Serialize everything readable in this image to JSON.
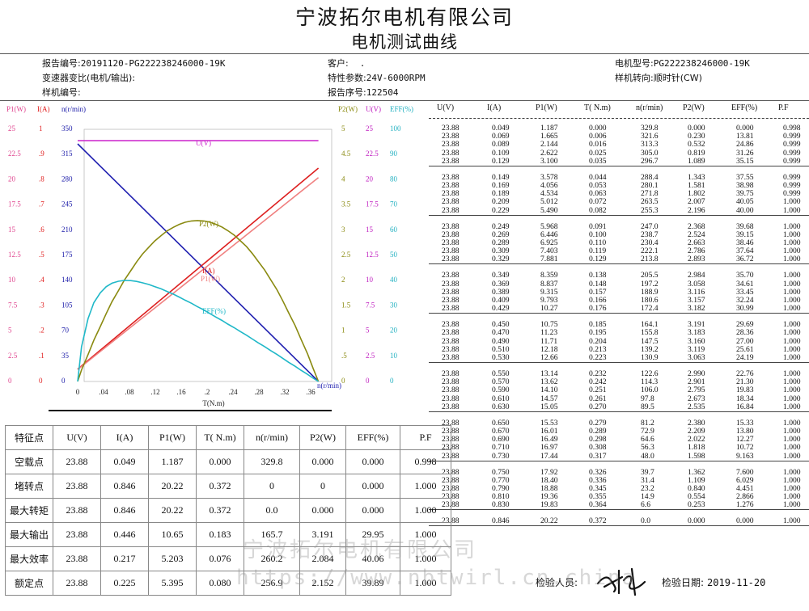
{
  "header": {
    "company": "宁波拓尔电机有限公司",
    "doc_title": "电机测试曲线",
    "report_no_label": "报告编号:",
    "report_no": "20191120-PG222238246000-19K",
    "customer_label": "客户:",
    "customer": ".",
    "motor_model_label": "电机型号:",
    "motor_model": "PG222238246000-19K",
    "gear_ratio_label": "变速器变比(电机/输出):",
    "gear_ratio": "",
    "spec_label": "特性参数:",
    "spec": "24V-6000RPM",
    "rotation_label": "样机转向:",
    "rotation": "顺时针(CW)",
    "sample_no_label": "样机编号:",
    "sample_no": "",
    "report_seq_label": "报告序号:",
    "report_seq": "122504"
  },
  "chart_data": {
    "type": "line",
    "xlabel": "T(N.m)",
    "x_ticks": [
      "0",
      ".04",
      ".08",
      ".12",
      ".16",
      ".2",
      ".24",
      ".28",
      ".32",
      ".36"
    ],
    "xlim": [
      0,
      0.4
    ],
    "left_axes": [
      {
        "name": "P1(W)",
        "color": "#e0458f",
        "ticks": [
          "25",
          "22.5",
          "20",
          "17.5",
          "15",
          "12.5",
          "10",
          "7.5",
          "5",
          "2.5",
          "0"
        ]
      },
      {
        "name": "I(A)",
        "color": "#e02020",
        "ticks": [
          "1",
          ".9",
          ".8",
          ".7",
          ".6",
          ".5",
          ".4",
          ".3",
          ".2",
          ".1",
          "0"
        ]
      },
      {
        "name": "n(r/min)",
        "color": "#1a1aa8",
        "ticks": [
          "350",
          "315",
          "280",
          "245",
          "210",
          "175",
          "140",
          "105",
          "70",
          "35",
          "0"
        ]
      }
    ],
    "right_axes": [
      {
        "name": "P2(W)",
        "color": "#8a8a10",
        "ticks": [
          "5",
          "4.5",
          "4",
          "3.5",
          "3",
          "2.5",
          "2",
          "1.5",
          "1",
          ".5",
          "0"
        ]
      },
      {
        "name": "U(V)",
        "color": "#c020c0",
        "ticks": [
          "25",
          "22.5",
          "20",
          "17.5",
          "15",
          "12.5",
          "10",
          "7.5",
          "5",
          "2.5",
          "0"
        ]
      },
      {
        "name": "EFF(%)",
        "color": "#20b0c0",
        "ticks": [
          "100",
          "90",
          "80",
          "70",
          "60",
          "50",
          "40",
          "30",
          "20",
          "10",
          "0"
        ]
      }
    ],
    "curve_labels": {
      "U": "U(V)",
      "P2": "P2(W)",
      "I": "I(A)",
      "P1": "P1(W)",
      "EFF": "EFF(%)",
      "n": "n(r/min)"
    },
    "series": [
      {
        "name": "U(V)",
        "axis": "U(V)",
        "color": "#cc22cc",
        "x": [
          0.0,
          0.372
        ],
        "y": [
          23.88,
          23.88
        ]
      },
      {
        "name": "n(r/min)",
        "axis": "n(r/min)",
        "color": "#2020b0",
        "x": [
          0.0,
          0.372
        ],
        "y": [
          329.8,
          0.0
        ]
      },
      {
        "name": "I(A)",
        "axis": "I(A)",
        "color": "#dd2020",
        "x": [
          0.0,
          0.372
        ],
        "y": [
          0.049,
          0.846
        ]
      },
      {
        "name": "P1(W)",
        "axis": "P1(W)",
        "color": "#f08080",
        "x": [
          0.0,
          0.372
        ],
        "y": [
          1.187,
          20.22
        ]
      },
      {
        "name": "P2(W)",
        "axis": "P2(W)",
        "color": "#8a8a10",
        "x": [
          0.0,
          0.006,
          0.016,
          0.025,
          0.035,
          0.044,
          0.053,
          0.063,
          0.072,
          0.082,
          0.091,
          0.1,
          0.11,
          0.119,
          0.129,
          0.138,
          0.148,
          0.157,
          0.166,
          0.176,
          0.185,
          0.195,
          0.204,
          0.213,
          0.223,
          0.232,
          0.242,
          0.251,
          0.261,
          0.27,
          0.279,
          0.289,
          0.298,
          0.308,
          0.317,
          0.326,
          0.336,
          0.345,
          0.355,
          0.364,
          0.372
        ],
        "y": [
          0.0,
          0.23,
          0.532,
          0.819,
          1.089,
          1.343,
          1.581,
          1.802,
          2.007,
          2.196,
          2.368,
          2.524,
          2.663,
          2.786,
          2.893,
          2.984,
          3.058,
          3.116,
          3.157,
          3.182,
          3.191,
          3.183,
          3.16,
          3.119,
          3.063,
          2.99,
          2.901,
          2.795,
          2.673,
          2.535,
          2.38,
          2.209,
          2.022,
          1.818,
          1.598,
          1.362,
          1.109,
          0.84,
          0.554,
          0.253,
          0.0
        ]
      },
      {
        "name": "EFF(%)",
        "axis": "EFF(%)",
        "color": "#20b8c8",
        "x": [
          0.0,
          0.006,
          0.016,
          0.025,
          0.035,
          0.044,
          0.053,
          0.063,
          0.072,
          0.082,
          0.091,
          0.1,
          0.11,
          0.119,
          0.129,
          0.138,
          0.148,
          0.157,
          0.166,
          0.176,
          0.185,
          0.195,
          0.204,
          0.213,
          0.223,
          0.232,
          0.242,
          0.251,
          0.261,
          0.27,
          0.279,
          0.289,
          0.298,
          0.308,
          0.317,
          0.326,
          0.336,
          0.345,
          0.355,
          0.364,
          0.372
        ],
        "y": [
          0.0,
          13.81,
          24.86,
          31.26,
          35.15,
          37.55,
          38.98,
          39.75,
          40.05,
          40.0,
          39.68,
          39.15,
          38.46,
          37.64,
          36.72,
          35.7,
          34.61,
          33.45,
          32.24,
          30.99,
          29.69,
          28.36,
          27.0,
          25.61,
          24.19,
          22.76,
          21.3,
          19.83,
          18.34,
          16.84,
          15.33,
          13.8,
          12.27,
          10.72,
          9.163,
          7.6,
          6.029,
          4.451,
          2.866,
          1.276,
          0.0
        ]
      }
    ]
  },
  "data_table": {
    "headers": [
      "U(V)",
      "I(A)",
      "P1(W)",
      "T( N.m)",
      "n(r/min)",
      "P2(W)",
      "EFF(%)",
      "P.F"
    ],
    "groups": [
      [
        [
          "23.88",
          "0.049",
          "1.187",
          "0.000",
          "329.8",
          "0.000",
          "0.000",
          "0.998"
        ],
        [
          "23.88",
          "0.069",
          "1.665",
          "0.006",
          "321.6",
          "0.230",
          "13.81",
          "0.999"
        ],
        [
          "23.88",
          "0.089",
          "2.144",
          "0.016",
          "313.3",
          "0.532",
          "24.86",
          "0.999"
        ],
        [
          "23.88",
          "0.109",
          "2.622",
          "0.025",
          "305.0",
          "0.819",
          "31.26",
          "0.999"
        ],
        [
          "23.88",
          "0.129",
          "3.100",
          "0.035",
          "296.7",
          "1.089",
          "35.15",
          "0.999"
        ]
      ],
      [
        [
          "23.88",
          "0.149",
          "3.578",
          "0.044",
          "288.4",
          "1.343",
          "37.55",
          "0.999"
        ],
        [
          "23.88",
          "0.169",
          "4.056",
          "0.053",
          "280.1",
          "1.581",
          "38.98",
          "0.999"
        ],
        [
          "23.88",
          "0.189",
          "4.534",
          "0.063",
          "271.8",
          "1.802",
          "39.75",
          "0.999"
        ],
        [
          "23.88",
          "0.209",
          "5.012",
          "0.072",
          "263.5",
          "2.007",
          "40.05",
          "1.000"
        ],
        [
          "23.88",
          "0.229",
          "5.490",
          "0.082",
          "255.3",
          "2.196",
          "40.00",
          "1.000"
        ]
      ],
      [
        [
          "23.88",
          "0.249",
          "5.968",
          "0.091",
          "247.0",
          "2.368",
          "39.68",
          "1.000"
        ],
        [
          "23.88",
          "0.269",
          "6.446",
          "0.100",
          "238.7",
          "2.524",
          "39.15",
          "1.000"
        ],
        [
          "23.88",
          "0.289",
          "6.925",
          "0.110",
          "230.4",
          "2.663",
          "38.46",
          "1.000"
        ],
        [
          "23.88",
          "0.309",
          "7.403",
          "0.119",
          "222.1",
          "2.786",
          "37.64",
          "1.000"
        ],
        [
          "23.88",
          "0.329",
          "7.881",
          "0.129",
          "213.8",
          "2.893",
          "36.72",
          "1.000"
        ]
      ],
      [
        [
          "23.88",
          "0.349",
          "8.359",
          "0.138",
          "205.5",
          "2.984",
          "35.70",
          "1.000"
        ],
        [
          "23.88",
          "0.369",
          "8.837",
          "0.148",
          "197.2",
          "3.058",
          "34.61",
          "1.000"
        ],
        [
          "23.88",
          "0.389",
          "9.315",
          "0.157",
          "188.9",
          "3.116",
          "33.45",
          "1.000"
        ],
        [
          "23.88",
          "0.409",
          "9.793",
          "0.166",
          "180.6",
          "3.157",
          "32.24",
          "1.000"
        ],
        [
          "23.88",
          "0.429",
          "10.27",
          "0.176",
          "172.4",
          "3.182",
          "30.99",
          "1.000"
        ]
      ],
      [
        [
          "23.88",
          "0.450",
          "10.75",
          "0.185",
          "164.1",
          "3.191",
          "29.69",
          "1.000"
        ],
        [
          "23.88",
          "0.470",
          "11.23",
          "0.195",
          "155.8",
          "3.183",
          "28.36",
          "1.000"
        ],
        [
          "23.88",
          "0.490",
          "11.71",
          "0.204",
          "147.5",
          "3.160",
          "27.00",
          "1.000"
        ],
        [
          "23.88",
          "0.510",
          "12.18",
          "0.213",
          "139.2",
          "3.119",
          "25.61",
          "1.000"
        ],
        [
          "23.88",
          "0.530",
          "12.66",
          "0.223",
          "130.9",
          "3.063",
          "24.19",
          "1.000"
        ]
      ],
      [
        [
          "23.88",
          "0.550",
          "13.14",
          "0.232",
          "122.6",
          "2.990",
          "22.76",
          "1.000"
        ],
        [
          "23.88",
          "0.570",
          "13.62",
          "0.242",
          "114.3",
          "2.901",
          "21.30",
          "1.000"
        ],
        [
          "23.88",
          "0.590",
          "14.10",
          "0.251",
          "106.0",
          "2.795",
          "19.83",
          "1.000"
        ],
        [
          "23.88",
          "0.610",
          "14.57",
          "0.261",
          "97.8",
          "2.673",
          "18.34",
          "1.000"
        ],
        [
          "23.88",
          "0.630",
          "15.05",
          "0.270",
          "89.5",
          "2.535",
          "16.84",
          "1.000"
        ]
      ],
      [
        [
          "23.88",
          "0.650",
          "15.53",
          "0.279",
          "81.2",
          "2.380",
          "15.33",
          "1.000"
        ],
        [
          "23.88",
          "0.670",
          "16.01",
          "0.289",
          "72.9",
          "2.209",
          "13.80",
          "1.000"
        ],
        [
          "23.88",
          "0.690",
          "16.49",
          "0.298",
          "64.6",
          "2.022",
          "12.27",
          "1.000"
        ],
        [
          "23.88",
          "0.710",
          "16.97",
          "0.308",
          "56.3",
          "1.818",
          "10.72",
          "1.000"
        ],
        [
          "23.88",
          "0.730",
          "17.44",
          "0.317",
          "48.0",
          "1.598",
          "9.163",
          "1.000"
        ]
      ],
      [
        [
          "23.88",
          "0.750",
          "17.92",
          "0.326",
          "39.7",
          "1.362",
          "7.600",
          "1.000"
        ],
        [
          "23.88",
          "0.770",
          "18.40",
          "0.336",
          "31.4",
          "1.109",
          "6.029",
          "1.000"
        ],
        [
          "23.88",
          "0.790",
          "18.88",
          "0.345",
          "23.2",
          "0.840",
          "4.451",
          "1.000"
        ],
        [
          "23.88",
          "0.810",
          "19.36",
          "0.355",
          "14.9",
          "0.554",
          "2.866",
          "1.000"
        ],
        [
          "23.88",
          "0.830",
          "19.83",
          "0.364",
          "6.6",
          "0.253",
          "1.276",
          "1.000"
        ]
      ],
      [
        [
          "23.88",
          "0.846",
          "20.22",
          "0.372",
          "0.0",
          "0.000",
          "0.000",
          "1.000"
        ]
      ]
    ]
  },
  "summary_table": {
    "headers": [
      "特征点",
      "U(V)",
      "I(A)",
      "P1(W)",
      "T( N.m)",
      "n(r/min)",
      "P2(W)",
      "EFF(%)",
      "P.F"
    ],
    "rows": [
      [
        "空载点",
        "23.88",
        "0.049",
        "1.187",
        "0.000",
        "329.8",
        "0.000",
        "0.000",
        "0.998"
      ],
      [
        "堵转点",
        "23.88",
        "0.846",
        "20.22",
        "0.372",
        "0",
        "0",
        "0.000",
        "1.000"
      ],
      [
        "最大转矩",
        "23.88",
        "0.846",
        "20.22",
        "0.372",
        "0.0",
        "0.000",
        "0.000",
        "1.000"
      ],
      [
        "最大输出",
        "23.88",
        "0.446",
        "10.65",
        "0.183",
        "165.7",
        "3.191",
        "29.95",
        "1.000"
      ],
      [
        "最大效率",
        "23.88",
        "0.217",
        "5.203",
        "0.076",
        "260.2",
        "2.084",
        "40.06",
        "1.000"
      ],
      [
        "额定点",
        "23.88",
        "0.225",
        "5.395",
        "0.080",
        "256.9",
        "2.152",
        "39.89",
        "1.000"
      ]
    ]
  },
  "footer": {
    "inspector_label": "检验人员:",
    "inspector_signature": "李里华",
    "date_label": "检验日期:",
    "date": "2019-11-20"
  },
  "watermark": {
    "text": "宁波拓尔电机有限公司",
    "url": "https://www.nbtwirl.cn.china"
  }
}
